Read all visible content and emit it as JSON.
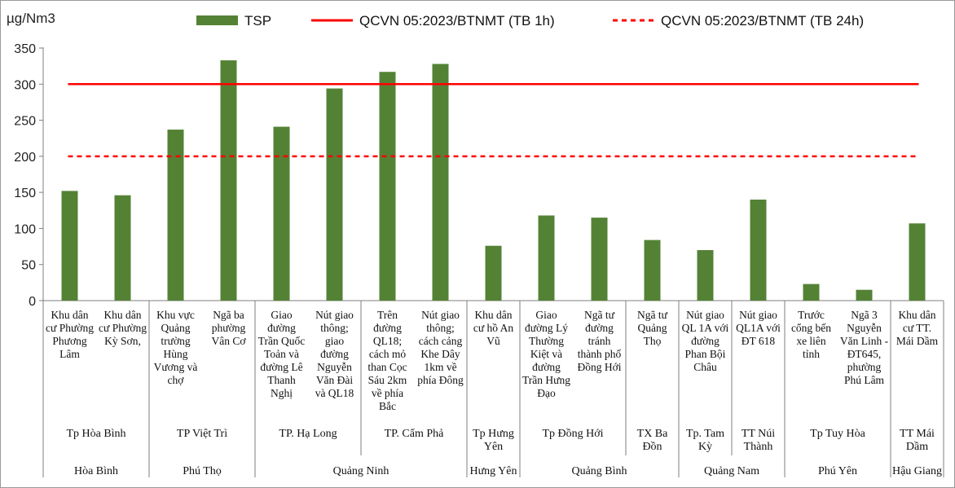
{
  "chart_data": {
    "type": "bar",
    "ylabel": "µg/Nm3",
    "ylim": [
      0,
      350
    ],
    "yticks": [
      0,
      50,
      100,
      150,
      200,
      250,
      300,
      350
    ],
    "grid": false,
    "legend_position": "top",
    "categories": [
      "Khu dân cư Phường Phương Lâm",
      "Khu dân cư Phường Kỳ Sơn,",
      "Khu vực Quảng trường Hùng Vương và chợ",
      "Ngã ba phường Vân Cơ",
      "Giao đường Trần Quốc Toản và đường Lê Thanh Nghị",
      "Nút giao thông; giao đường Nguyễn Văn Đài và QL18",
      "Trên đường QL18; cách mỏ than Cọc Sáu 2km về phía Bắc",
      "Nút giao thông; cách cảng Khe Dây 1km về phía Đông",
      "Khu dân cư hồ An Vũ",
      "Giao đường Lý Thường Kiệt và đường Trần Hưng Đạo",
      "Ngã tư đường tránh thành phố Đồng Hới",
      "Ngã tư Quảng Thọ",
      "Nút giao QL 1A với đường Phan Bội Châu",
      "Nút giao QL1A với ĐT 618",
      "Trước cổng bến xe liên tỉnh",
      "Ngã 3 Nguyễn Văn Linh - ĐT645, phường Phú Lâm",
      "Khu dân cư TT. Mái Dầm"
    ],
    "category_lines": [
      [
        "Khu dân",
        "cư Phường",
        "Phương",
        "Lâm"
      ],
      [
        "Khu dân",
        "cư Phường",
        "Kỳ Sơn,"
      ],
      [
        "Khu vực",
        "Quảng",
        "trường",
        "Hùng",
        "Vương và",
        "chợ"
      ],
      [
        "Ngã ba",
        "phường",
        "Vân Cơ"
      ],
      [
        "Giao",
        "đường",
        "Trần Quốc",
        "Toản và",
        "đường Lê",
        "Thanh",
        "Nghị"
      ],
      [
        "Nút giao",
        "thông;",
        "giao",
        "đường",
        "Nguyễn",
        "Văn Đài",
        "và QL18"
      ],
      [
        "Trên",
        "đường",
        "QL18;",
        "cách mỏ",
        "than Cọc",
        "Sáu 2km",
        "về phía",
        "Bắc"
      ],
      [
        "Nút giao",
        "thông;",
        "cách cảng",
        "Khe Dây",
        "1km về",
        "phía Đông"
      ],
      [
        "Khu dân",
        "cư hồ An",
        "Vũ"
      ],
      [
        "Giao",
        "đường Lý",
        "Thường",
        "Kiệt và",
        "đường",
        "Trần Hưng",
        "Đạo"
      ],
      [
        "Ngã tư",
        "đường",
        "tránh",
        "thành phố",
        "Đồng Hới"
      ],
      [
        "Ngã tư",
        "Quảng",
        "Thọ"
      ],
      [
        "Nút giao",
        "QL 1A với",
        "đường",
        "Phan Bội",
        "Châu"
      ],
      [
        "Nút giao",
        "QL1A với",
        "ĐT 618"
      ],
      [
        "Trước",
        "cổng bến",
        "xe liên",
        "tỉnh"
      ],
      [
        "Ngã 3",
        "Nguyễn",
        "Văn Linh -",
        "ĐT645,",
        "phường",
        "Phú Lâm"
      ],
      [
        "Khu dân",
        "cư TT.",
        "Mái Dầm"
      ]
    ],
    "series": [
      {
        "name": "TSP",
        "color": "#548235",
        "values": [
          152,
          146,
          237,
          333,
          241,
          294,
          317,
          328,
          76,
          118,
          115,
          84,
          70,
          140,
          23,
          15,
          107
        ]
      }
    ],
    "reference_lines": [
      {
        "name": "QCVN 05:2023/BTNMT (TB 1h)",
        "value": 300,
        "style": "solid",
        "color": "#ff0000"
      },
      {
        "name": "QCVN 05:2023/BTNMT (TB 24h)",
        "value": 200,
        "style": "dashed",
        "color": "#ff0000"
      }
    ],
    "cities": [
      {
        "lines": [
          "Tp Hòa Bình"
        ],
        "span": 2
      },
      {
        "lines": [
          "TP Việt Trì"
        ],
        "span": 2
      },
      {
        "lines": [
          "TP. Hạ Long"
        ],
        "span": 2
      },
      {
        "lines": [
          "TP. Cẩm Phả"
        ],
        "span": 2
      },
      {
        "lines": [
          "Tp Hưng",
          "Yên"
        ],
        "span": 1
      },
      {
        "lines": [
          "Tp Đồng Hới"
        ],
        "span": 2
      },
      {
        "lines": [
          "TX Ba",
          "Đồn"
        ],
        "span": 1
      },
      {
        "lines": [
          "Tp. Tam",
          "Kỳ"
        ],
        "span": 1
      },
      {
        "lines": [
          "TT Núi",
          "Thành"
        ],
        "span": 1
      },
      {
        "lines": [
          "Tp Tuy Hòa"
        ],
        "span": 2
      },
      {
        "lines": [
          "TT Mái",
          "Dầm"
        ],
        "span": 1
      }
    ],
    "provinces": [
      {
        "name": "Hòa Bình",
        "span": 2
      },
      {
        "name": "Phú Thọ",
        "span": 2
      },
      {
        "name": "Quảng Ninh",
        "span": 4
      },
      {
        "name": "Hưng Yên",
        "span": 1
      },
      {
        "name": "Quảng Bình",
        "span": 3
      },
      {
        "name": "Quảng Nam",
        "span": 2
      },
      {
        "name": "Phú Yên",
        "span": 2
      },
      {
        "name": "Hậu Giang",
        "span": 1
      }
    ]
  }
}
